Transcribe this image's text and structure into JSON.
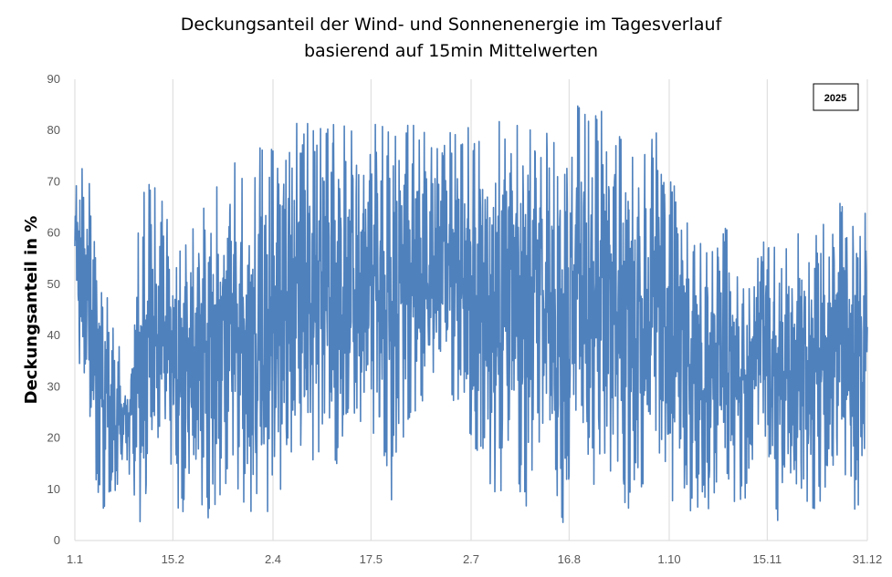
{
  "chart_data": {
    "type": "line",
    "title": "Deckungsanteil der Wind- und Sonnenenergie im Tagesverlauf",
    "subtitle": "basierend auf 15min Mittelwerten",
    "xlabel": "",
    "ylabel": "Deckungsanteil in %",
    "ylim": [
      0,
      90
    ],
    "yticks": [
      0,
      10,
      20,
      30,
      40,
      50,
      60,
      70,
      80,
      90
    ],
    "xlim": [
      "1.1",
      "31.12"
    ],
    "xticks": [
      {
        "day": 1,
        "label": "1.1"
      },
      {
        "day": 46,
        "label": "15.2"
      },
      {
        "day": 92,
        "label": "2.4"
      },
      {
        "day": 137,
        "label": "17.5"
      },
      {
        "day": 183,
        "label": "2.7"
      },
      {
        "day": 228,
        "label": "16.8"
      },
      {
        "day": 274,
        "label": "1.10"
      },
      {
        "day": 319,
        "label": "15.11"
      },
      {
        "day": 365,
        "label": "31.12"
      }
    ],
    "grid": "vertical",
    "legend": {
      "position": "top-right",
      "label": "2025"
    },
    "series": [
      {
        "name": "2025",
        "color": "#4f81bd",
        "envelope_min": [
          42,
          21,
          6,
          8,
          14,
          3,
          10,
          20,
          2,
          12,
          4,
          9,
          14,
          3,
          11,
          2,
          16,
          19,
          15,
          20,
          14,
          22,
          24,
          19,
          1,
          23,
          26,
          30,
          34,
          24,
          19,
          16,
          5,
          23,
          4,
          20,
          15,
          3,
          26,
          8,
          18,
          10,
          6,
          11,
          20,
          9,
          4,
          7,
          4,
          17,
          7,
          8,
          28,
          1,
          7,
          9,
          6,
          10,
          11,
          6,
          9
        ],
        "envelope_max": [
          77,
          73,
          51,
          43,
          32,
          67,
          71,
          63,
          58,
          61,
          72,
          68,
          74,
          71,
          79,
          76,
          79,
          82,
          81,
          80,
          82,
          80,
          83,
          84,
          80,
          81,
          81,
          78,
          80,
          79,
          81,
          80,
          82,
          80,
          82,
          78,
          80,
          80,
          85,
          82,
          84,
          80,
          75,
          74,
          83,
          78,
          72,
          62,
          55,
          64,
          58,
          55,
          62,
          59,
          62,
          60,
          59,
          63,
          66,
          67,
          68
        ]
      }
    ]
  }
}
